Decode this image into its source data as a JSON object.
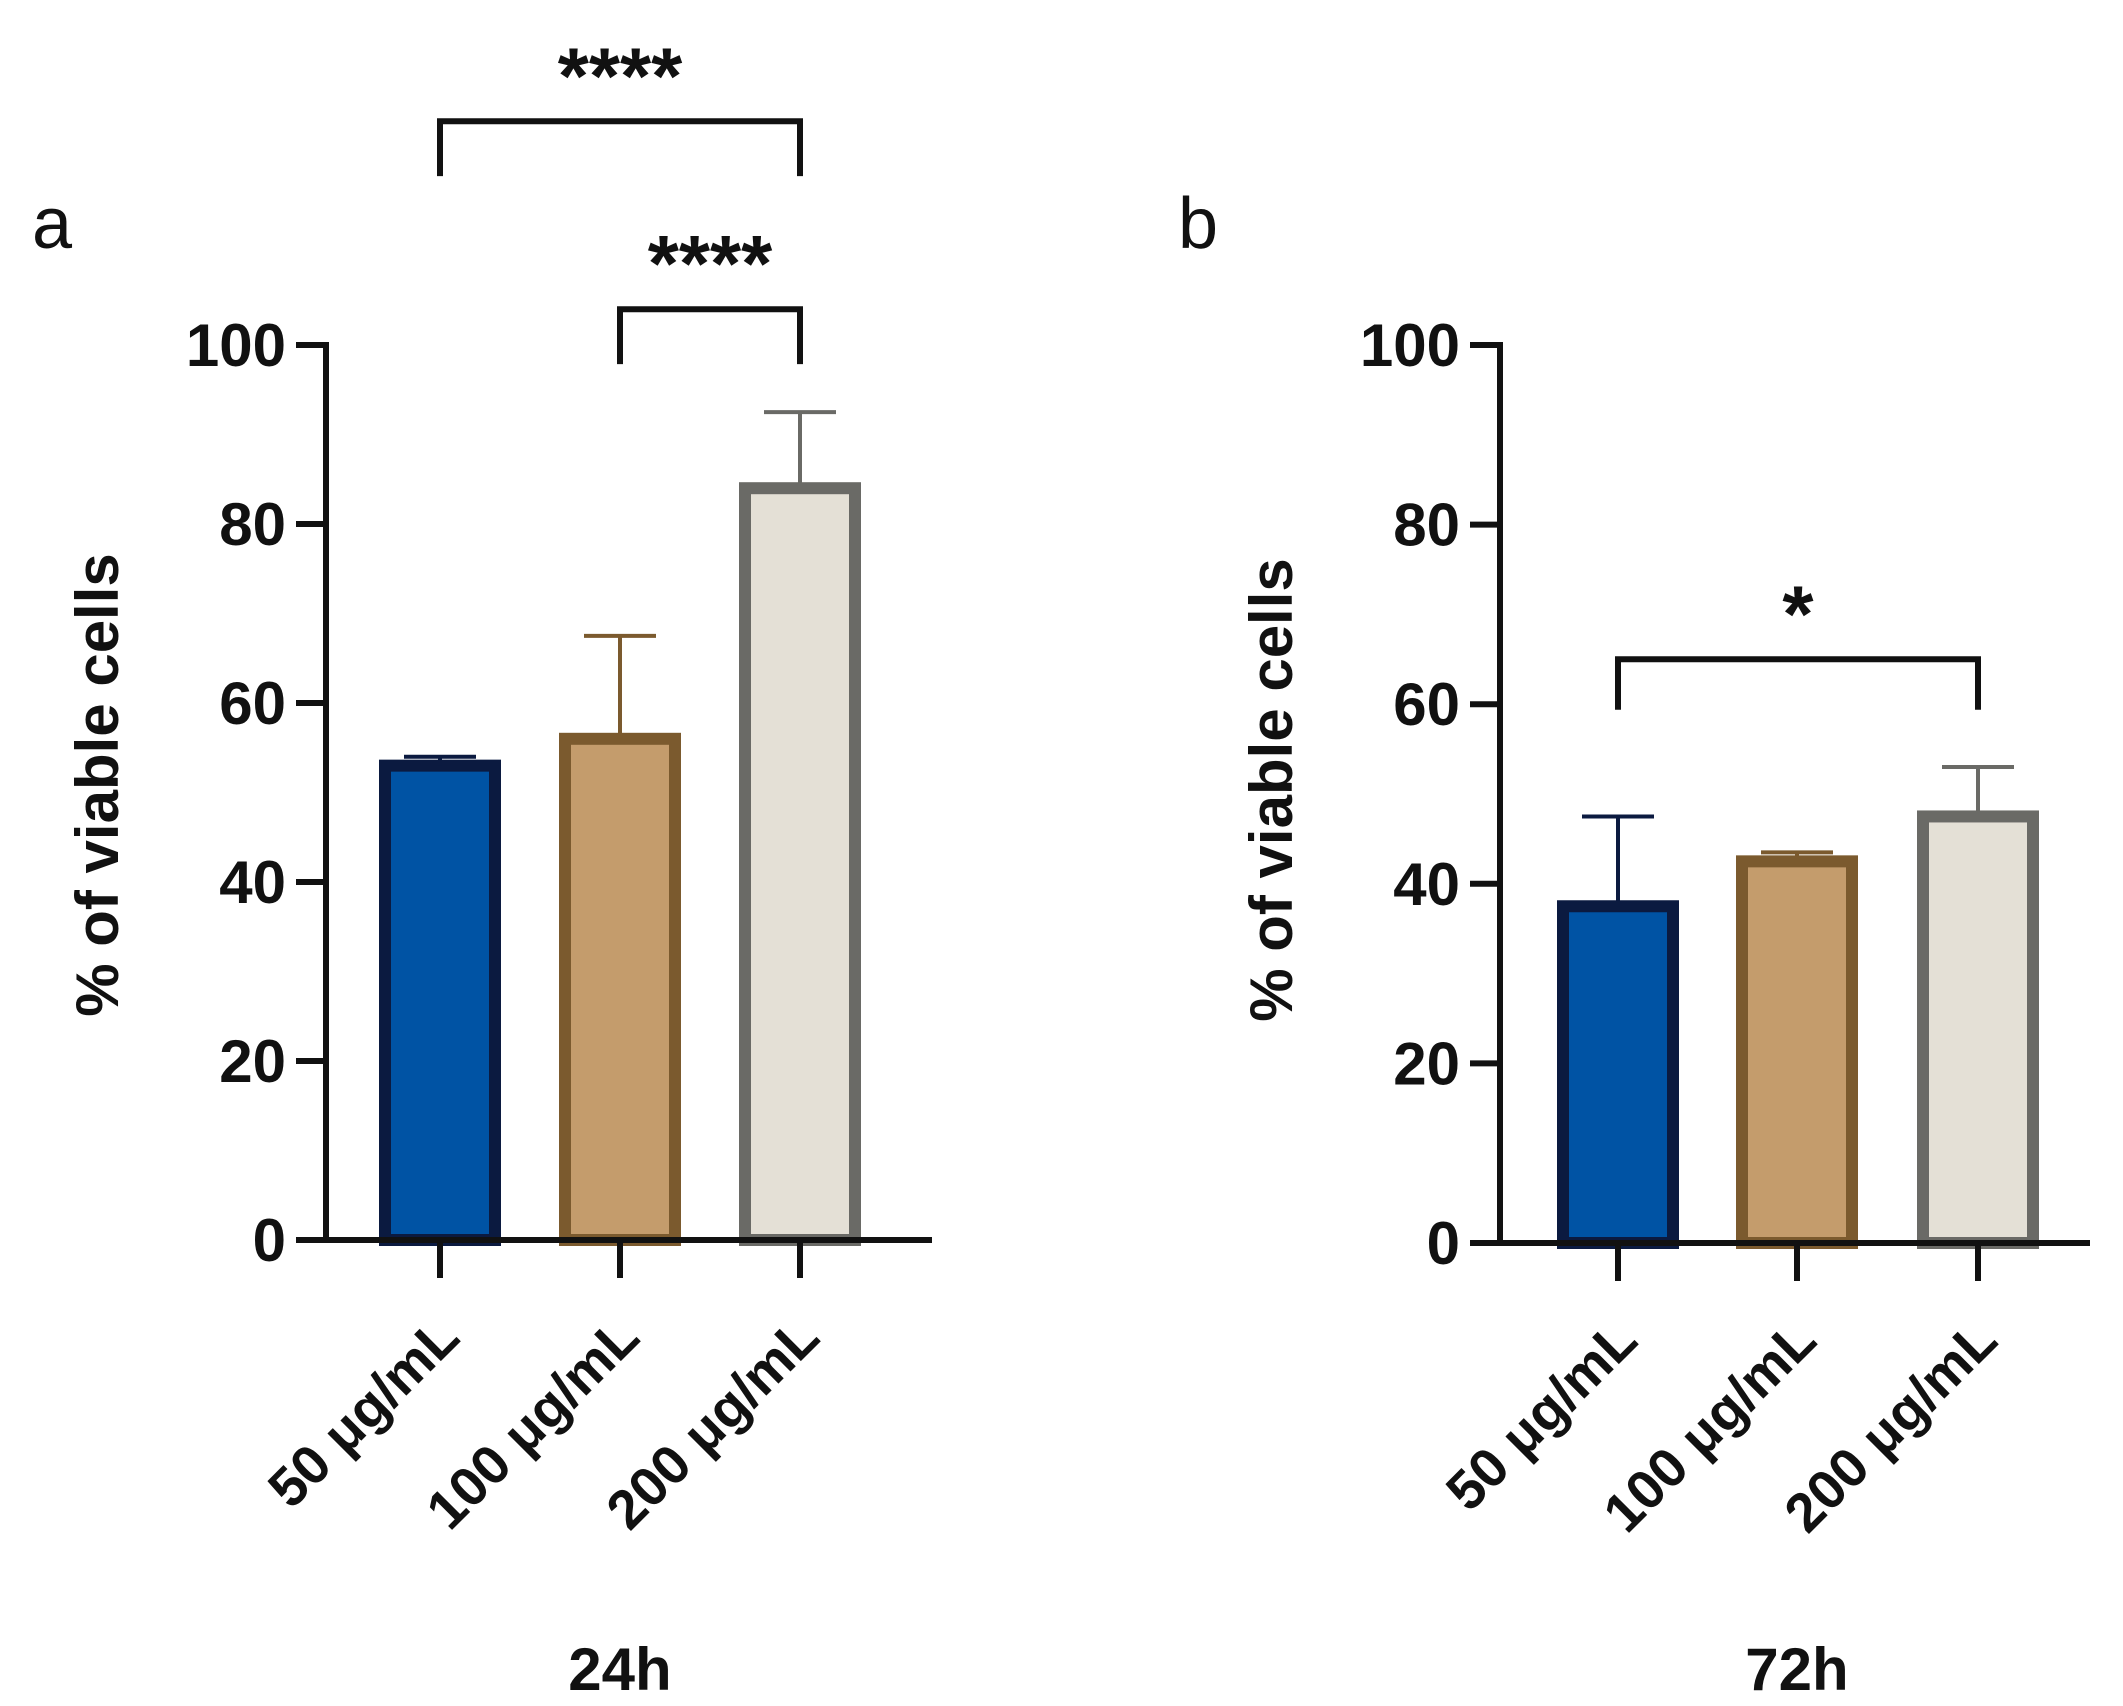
{
  "figure": {
    "background": "#ffffff",
    "axis_color": "#111111"
  },
  "chart_data": [
    {
      "type": "bar",
      "panel_label": "a",
      "categories": [
        "50 μg/mL",
        "100 μg/mL",
        "200 μg/mL"
      ],
      "values": [
        53,
        56,
        84
      ],
      "error_upper": [
        54,
        67.5,
        92.5
      ],
      "bar_fill": [
        "#0053a4",
        "#c49c6c",
        "#e4e0d6"
      ],
      "bar_edge": [
        "#0b1a40",
        "#7b5a2e",
        "#6a6a66"
      ],
      "title": "",
      "xlabel": "24h",
      "ylabel": "% of viable cells",
      "ylim": [
        0,
        100
      ],
      "yticks": [
        0,
        20,
        40,
        60,
        80,
        100
      ],
      "yticklabels": [
        "0",
        "20",
        "40",
        "60",
        "80",
        "100"
      ],
      "significance": [
        {
          "from": 0,
          "to": 2,
          "label": "****",
          "y": 125
        },
        {
          "from": 1,
          "to": 2,
          "label": "****",
          "y": 104
        }
      ]
    },
    {
      "type": "bar",
      "panel_label": "b",
      "categories": [
        "50 μg/mL",
        "100 μg/mL",
        "200 μg/mL"
      ],
      "values": [
        37.5,
        42.5,
        47.5
      ],
      "error_upper": [
        47.5,
        43.5,
        53
      ],
      "bar_fill": [
        "#0053a4",
        "#c49c6c",
        "#e4e0d6"
      ],
      "bar_edge": [
        "#0b1a40",
        "#7b5a2e",
        "#6a6a66"
      ],
      "title": "",
      "xlabel": "72h",
      "ylabel": "% of viable cells",
      "ylim": [
        0,
        100
      ],
      "yticks": [
        0,
        20,
        40,
        60,
        80,
        100
      ],
      "yticklabels": [
        "0",
        "20",
        "40",
        "60",
        "80",
        "100"
      ],
      "significance": [
        {
          "from": 0,
          "to": 2,
          "label": "*",
          "y": 65
        }
      ]
    }
  ]
}
